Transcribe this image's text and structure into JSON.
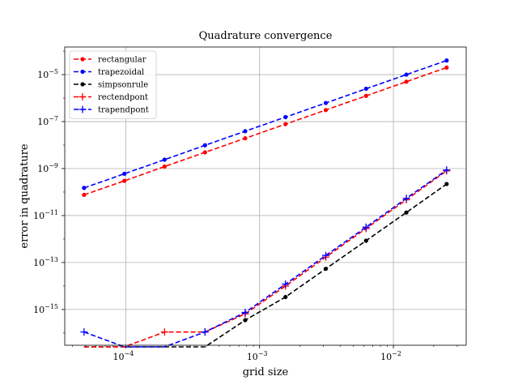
{
  "chart_data": {
    "type": "line",
    "title": "Quadrature convergence",
    "xlabel": "grid size",
    "ylabel": "error in quadrature",
    "xscale": "log",
    "yscale": "log",
    "xlim": [
      3.5e-05,
      0.035
    ],
    "ylim": [
      3e-17,
      0.00015
    ],
    "grid": true,
    "legend_position": "top-left",
    "x": [
      4.88e-05,
      9.77e-05,
      0.000195,
      0.000391,
      0.000781,
      0.0015625,
      0.003125,
      0.00625,
      0.0125,
      0.025
    ],
    "x_ticks": [
      {
        "value": 0.0001,
        "base": "10",
        "exp": "−4"
      },
      {
        "value": 0.001,
        "base": "10",
        "exp": "−3"
      },
      {
        "value": 0.01,
        "base": "10",
        "exp": "−2"
      }
    ],
    "y_ticks": [
      {
        "value": 1e-15,
        "base": "10",
        "exp": "−15"
      },
      {
        "value": 1e-13,
        "base": "10",
        "exp": "−13"
      },
      {
        "value": 1e-11,
        "base": "10",
        "exp": "−11"
      },
      {
        "value": 1e-09,
        "base": "10",
        "exp": "−9"
      },
      {
        "value": 1e-07,
        "base": "10",
        "exp": "−7"
      },
      {
        "value": 1e-05,
        "base": "10",
        "exp": "−5"
      }
    ],
    "series": [
      {
        "name": "rectangular",
        "color": "#ff0000",
        "marker": "dot",
        "values": [
          7.6e-11,
          3e-10,
          1.22e-09,
          4.9e-09,
          1.95e-08,
          7.8e-08,
          3.1e-07,
          1.25e-06,
          5e-06,
          2e-05
        ]
      },
      {
        "name": "trapezoidal",
        "color": "#0000ff",
        "marker": "dot",
        "values": [
          1.5e-10,
          6e-10,
          2.4e-09,
          9.8e-09,
          3.9e-08,
          1.55e-07,
          6.2e-07,
          2.5e-06,
          1e-05,
          4e-05
        ]
      },
      {
        "name": "simpsonrule",
        "color": "#000000",
        "marker": "dot",
        "values": [
          null,
          null,
          null,
          null,
          3.5e-16,
          3.4e-15,
          5.4e-14,
          8.5e-13,
          1.35e-11,
          2.2e-10
        ]
      },
      {
        "name": "rectendpont",
        "color": "#ff0000",
        "marker": "plus",
        "values": [
          null,
          null,
          1.1e-16,
          1.1e-16,
          6.5e-16,
          1e-14,
          1.7e-13,
          2.8e-12,
          4.7e-11,
          8e-10
        ]
      },
      {
        "name": "trapendpont",
        "color": "#0000ff",
        "marker": "plus",
        "values": [
          1.1e-16,
          null,
          null,
          1.1e-16,
          7.5e-16,
          1.2e-14,
          2e-13,
          3.2e-12,
          5.4e-11,
          8.7e-10
        ]
      }
    ]
  }
}
